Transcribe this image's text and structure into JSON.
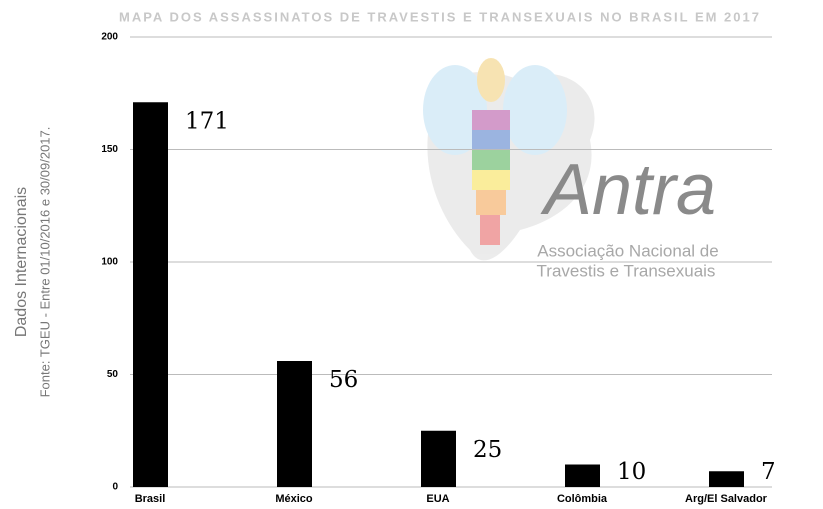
{
  "chart_data": {
    "type": "bar",
    "title": "MAPA DOS ASSASSINATOS DE TRAVESTIS E TRANSEXUAIS NO BRASIL EM 2017",
    "y_label": "Dados Internacionais",
    "subtitle": "Fonte: TGEU - Entre 01/10/2016 e 30/09/2017.",
    "categories": [
      "Brasil",
      "México",
      "EUA",
      "Colômbia",
      "Arg/El Salvador"
    ],
    "values": [
      171,
      56,
      25,
      10,
      7
    ],
    "color": "#000000",
    "ylim": [
      0,
      200
    ],
    "yticks": [
      0,
      50,
      100,
      150,
      200
    ],
    "grid": true,
    "watermark": [
      "Antra",
      "Associação Nacional de",
      "Travestis e Transexuais"
    ]
  }
}
